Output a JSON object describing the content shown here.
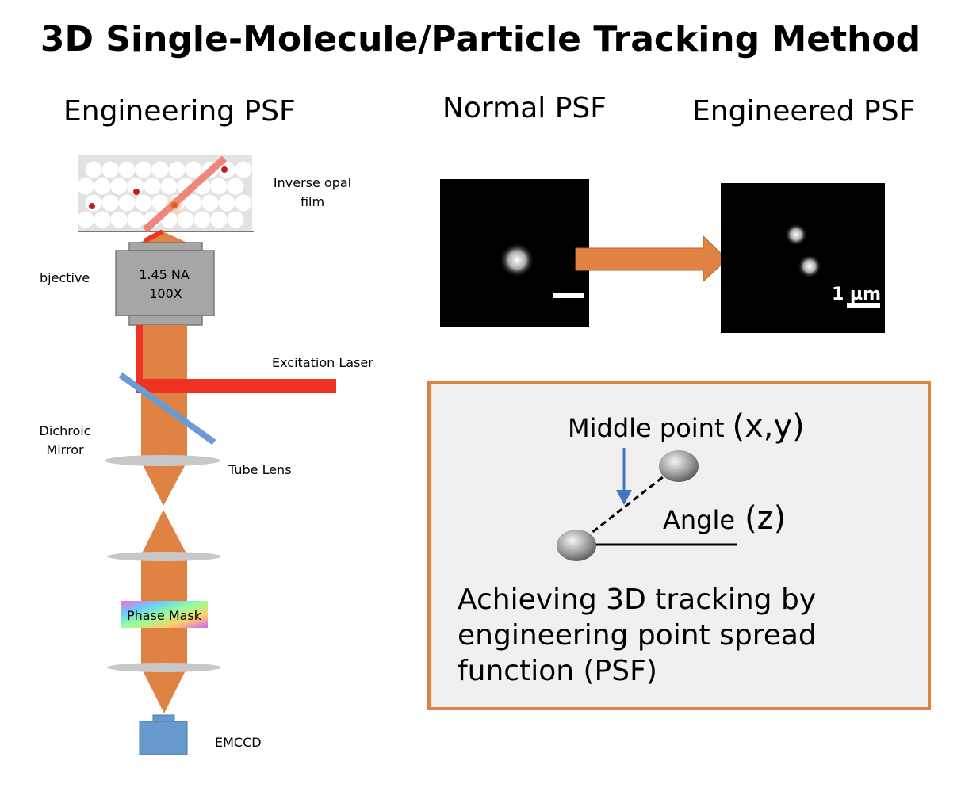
{
  "title": "3D Single-Molecule/Particle Tracking Method",
  "left": {
    "heading": "Engineering PSF",
    "labels": {
      "film_1": "Inverse opal",
      "film_2": "film",
      "objective": "bjective",
      "objective_na": "1.45 NA",
      "objective_mag": "100X",
      "laser": "Excitation Laser",
      "dichroic_1": "Dichroic",
      "dichroic_2": "Mirror",
      "tube_lens": "Tube Lens",
      "phase_mask": "Phase Mask",
      "camera": "EMCCD"
    }
  },
  "right": {
    "normal_heading": "Normal PSF",
    "engineered_heading": "Engineered PSF",
    "scale_bar": "1 µm",
    "box": {
      "middle_point": "Middle point",
      "middle_point_coords": "(x,y)",
      "angle": "Angle",
      "angle_coord": "(z)",
      "caption_1": "Achieving 3D tracking by",
      "caption_2": "engineering point spread",
      "caption_3": "function (PSF)"
    }
  },
  "colors": {
    "beam": "#df8244",
    "laser": "#ee3322",
    "mirror": "#6a9bd3",
    "objective": "#a6a6a6",
    "camera": "#6699cc",
    "box_border": "#df8244"
  }
}
